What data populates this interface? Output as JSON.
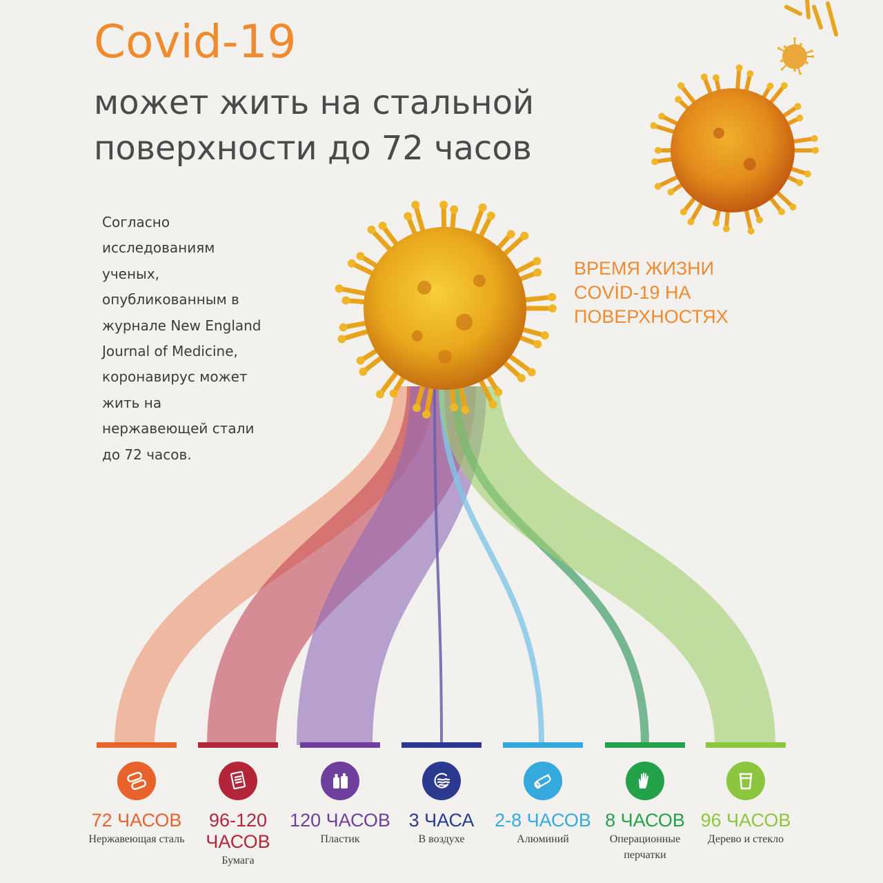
{
  "header": {
    "title": "Covid-19",
    "subtitle_lines": [
      "может жить на стальной",
      "поверхности до 72 часов"
    ]
  },
  "intro": {
    "lines": [
      "Согласно",
      "исследованиям",
      "ученых,",
      "опубликованным в",
      "журнале New England",
      "Journal of Medicine,",
      "коронавирус может",
      "жить на",
      "нержавеющей стали",
      "до 72 часов."
    ]
  },
  "lifetime_heading": {
    "lines": [
      "ВРЕМЯ ЖИЗНИ",
      "COVİD-19 НА",
      "ПОВЕРХНОСТЯХ"
    ]
  },
  "categories": [
    {
      "hours": "72 ЧАСОВ",
      "label": "Нержавеющая сталь",
      "color": "#e8622c",
      "icon": "pills-icon"
    },
    {
      "hours": "96-120 ЧАСОВ",
      "label": "Бумага",
      "color": "#b3263a",
      "icon": "paper-icon"
    },
    {
      "hours": "120 ЧАСОВ",
      "label": "Пластик",
      "color": "#6f3f9e",
      "icon": "plastic-bottles-icon"
    },
    {
      "hours": "3 ЧАСА",
      "label": "В воздухе",
      "color": "#2b3a8f",
      "icon": "air-icon"
    },
    {
      "hours": "2-8 ЧАСОВ",
      "label": "Алюминий",
      "color": "#35a9dc",
      "icon": "aluminium-foil-icon"
    },
    {
      "hours": "8 ЧАСОВ",
      "label": "Операционные перчатки",
      "color": "#23a24a",
      "icon": "gloves-icon"
    },
    {
      "hours": "96 ЧАСОВ",
      "label": "Дерево и стекло",
      "color": "#8cc63f",
      "icon": "glass-icon"
    }
  ]
}
